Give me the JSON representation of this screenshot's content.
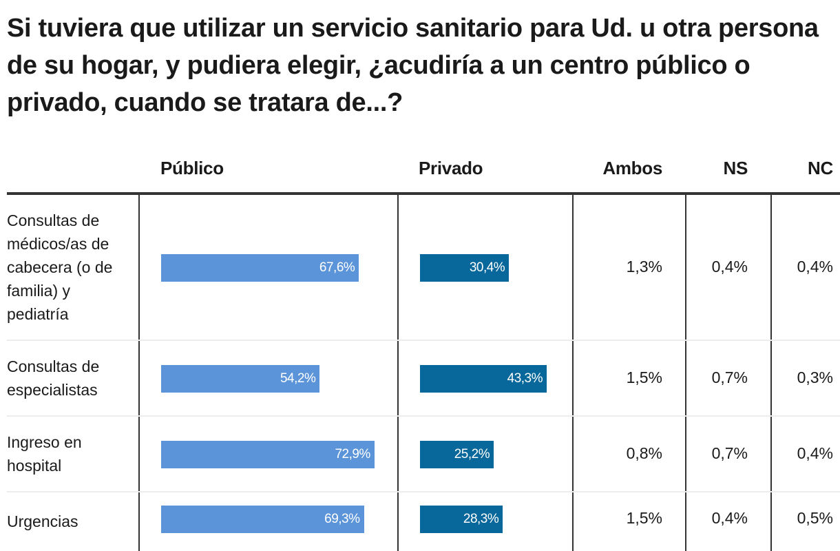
{
  "title": "Si tuviera que utilizar un servicio sanitario para Ud. u otra persona de su hogar, y pudiera elegir, ¿acudiría a un centro público o privado, cuando se tratara de...?",
  "colors": {
    "publico": "#5b94d8",
    "privado": "#08689b",
    "rule": "#333333",
    "separator": "#ececec"
  },
  "chart_data": {
    "type": "table",
    "title": "Si tuviera que utilizar un servicio sanitario para Ud. u otra persona de su hogar, y pudiera elegir, ¿acudiría a un centro público o privado, cuando se tratara de...?",
    "columns": [
      "Público",
      "Privado",
      "Ambos",
      "NS",
      "NC"
    ],
    "unit": "%",
    "rows": [
      {
        "label": "Consultas de médicos/as de cabecera (o de familia) y pediatría",
        "publico": 67.6,
        "privado": 30.4,
        "ambos": 1.3,
        "ns": 0.4,
        "nc": 0.4,
        "labels": {
          "publico": "67,6%",
          "privado": "30,4%",
          "ambos": "1,3%",
          "ns": "0,4%",
          "nc": "0,4%"
        }
      },
      {
        "label": "Consultas de especialistas",
        "publico": 54.2,
        "privado": 43.3,
        "ambos": 1.5,
        "ns": 0.7,
        "nc": 0.3,
        "labels": {
          "publico": "54,2%",
          "privado": "43,3%",
          "ambos": "1,5%",
          "ns": "0,7%",
          "nc": "0,3%"
        }
      },
      {
        "label": "Ingreso en hospital",
        "publico": 72.9,
        "privado": 25.2,
        "ambos": 0.8,
        "ns": 0.7,
        "nc": 0.4,
        "labels": {
          "publico": "72,9%",
          "privado": "25,2%",
          "ambos": "0,8%",
          "ns": "0,7%",
          "nc": "0,4%"
        }
      },
      {
        "label": "Urgencias",
        "publico": 69.3,
        "privado": 28.3,
        "ambos": 1.5,
        "ns": 0.4,
        "nc": 0.5,
        "labels": {
          "publico": "69,3%",
          "privado": "28,3%",
          "ambos": "1,5%",
          "ns": "0,4%",
          "nc": "0,5%"
        }
      }
    ]
  }
}
